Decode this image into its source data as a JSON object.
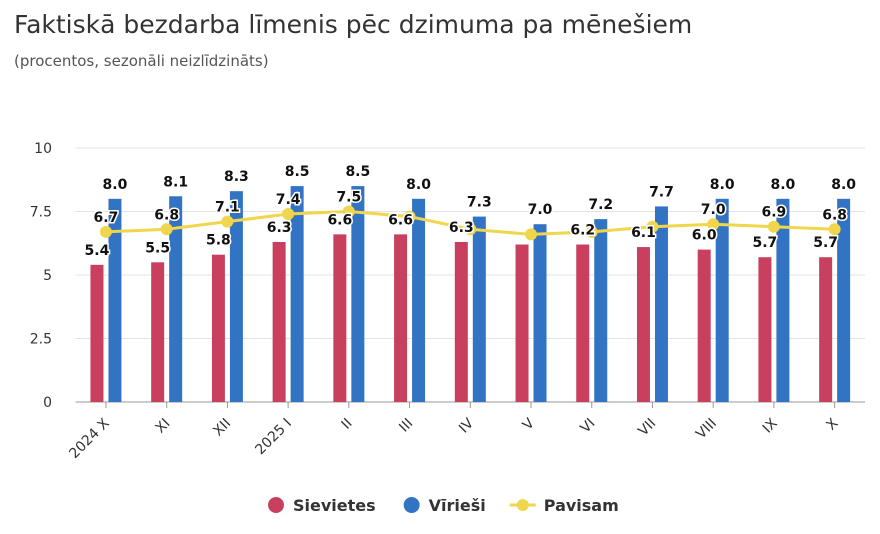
{
  "chart_data": {
    "type": "bar",
    "title": "Faktiskā bezdarba līmenis pēc dzimuma pa mēnešiem",
    "subtitle": "(procentos, sezonāli neizlīdzināts)",
    "categories": [
      "2024 X",
      "XI",
      "XII",
      "2025 I",
      "II",
      "III",
      "IV",
      "V",
      "VI",
      "VII",
      "VIII",
      "IX",
      "X"
    ],
    "ylim": [
      0,
      10
    ],
    "yticks": [
      "0",
      "2.5",
      "5",
      "7.5",
      "10"
    ],
    "grid": true,
    "legend_position": "bottom",
    "series": [
      {
        "name": "Sievietes",
        "kind": "bar",
        "color": "#c8405e",
        "values": [
          5.4,
          5.5,
          5.8,
          6.3,
          6.6,
          6.6,
          6.3,
          6.2,
          6.2,
          6.1,
          6.0,
          5.7,
          5.7
        ]
      },
      {
        "name": "Vīrieši",
        "kind": "bar",
        "color": "#3273c4",
        "values": [
          8.0,
          8.1,
          8.3,
          8.5,
          8.5,
          8.0,
          7.3,
          7.0,
          7.2,
          7.7,
          8.0,
          8.0,
          8.0
        ]
      },
      {
        "name": "Pavisam",
        "kind": "line",
        "color": "#f0d64c",
        "values": [
          6.7,
          6.8,
          7.1,
          7.4,
          7.5,
          7.3,
          6.8,
          6.6,
          6.7,
          6.9,
          7.0,
          6.9,
          6.8
        ]
      }
    ]
  }
}
